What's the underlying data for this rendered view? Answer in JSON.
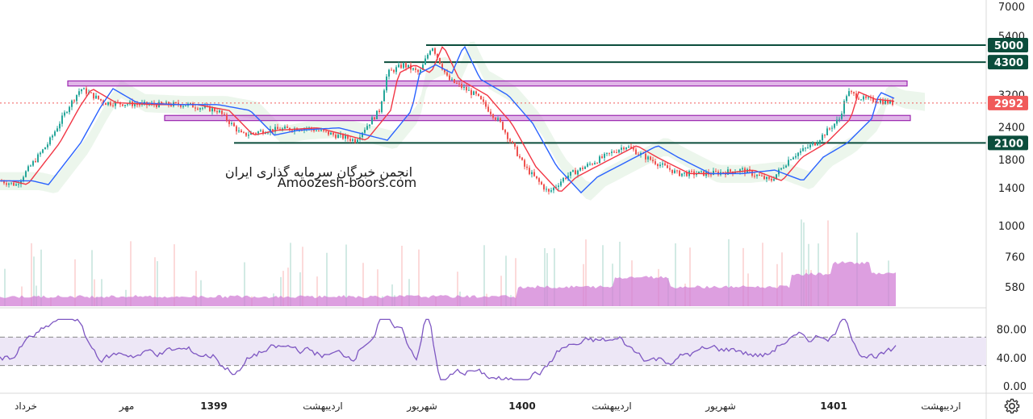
{
  "chart_data": {
    "type": "candlestick",
    "watermark": {
      "line1": "انجمن خبرگان سرمایه گذاری ایران",
      "line2": "Amoozesh-boors.com"
    },
    "y_axis": {
      "scale": "log",
      "ticks": [
        "7000",
        "5400",
        "3200",
        "2400",
        "1800",
        "1400",
        "1000",
        "760",
        "580"
      ]
    },
    "levels": [
      {
        "label": "5000",
        "value": 5000,
        "color": "#0b4d3c"
      },
      {
        "label": "4300",
        "value": 4300,
        "color": "#0b4d3c"
      },
      {
        "label": "2100",
        "value": 2100,
        "color": "#0b4d3c"
      }
    ],
    "zones": [
      {
        "from": 3480,
        "to": 3640,
        "color": "#c77ad6"
      },
      {
        "from": 2560,
        "to": 2680,
        "color": "#c77ad6"
      }
    ],
    "last_price": {
      "label": "2992",
      "value": 2992,
      "color": "#f05a5a"
    },
    "time_axis": [
      {
        "label": "خرداد",
        "bold": false
      },
      {
        "label": "مهر",
        "bold": false
      },
      {
        "label": "1399",
        "bold": true
      },
      {
        "label": "اردیبهشت",
        "bold": false
      },
      {
        "label": "شهریور",
        "bold": false
      },
      {
        "label": "1400",
        "bold": true
      },
      {
        "label": "اردیبهشت",
        "bold": false
      },
      {
        "label": "شهریور",
        "bold": false
      },
      {
        "label": "1401",
        "bold": true
      },
      {
        "label": "اردیبهشت",
        "bold": false
      }
    ],
    "rsi": {
      "ticks": [
        "80.00",
        "40.00",
        "0.00"
      ],
      "upper_band": 70,
      "lower_band": 30
    },
    "colors": {
      "up": "#26a69a",
      "down": "#ef5350",
      "ma_fast": "#f23645",
      "ma_slow": "#2962ff",
      "rsi_line": "#7e57c2",
      "volume": "#d17fd6"
    }
  },
  "toolbar": {
    "settings_icon": "gear-icon"
  }
}
